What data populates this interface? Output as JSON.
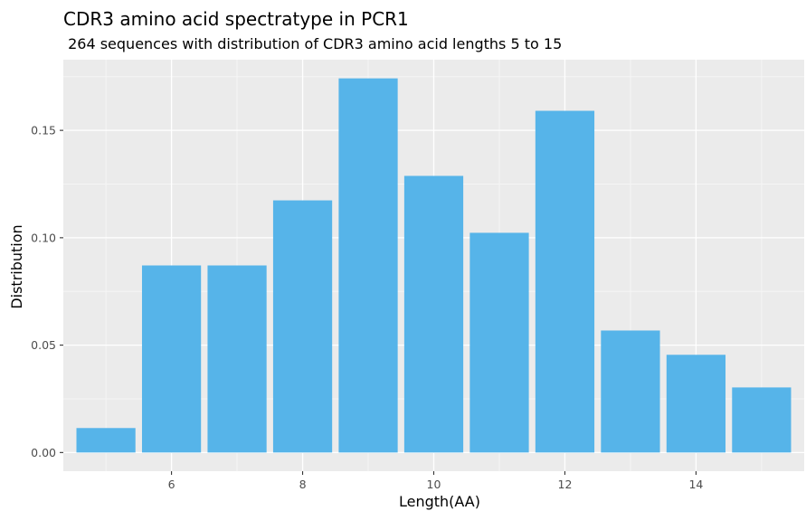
{
  "chart_data": {
    "type": "bar",
    "title": "CDR3 amino acid spectratype in PCR1",
    "subtitle": " 264 sequences with distribution of CDR3 amino acid lengths 5 to 15",
    "xlabel": "Length(AA)",
    "ylabel": "Distribution",
    "categories": [
      5,
      6,
      7,
      8,
      9,
      10,
      11,
      12,
      13,
      14,
      15
    ],
    "values": [
      0.0114,
      0.0871,
      0.0871,
      0.1174,
      0.1742,
      0.1288,
      0.1023,
      0.1591,
      0.0568,
      0.0455,
      0.0303
    ],
    "x_ticks": [
      "6",
      "8",
      "10",
      "12",
      "14"
    ],
    "x_tick_values": [
      6,
      8,
      10,
      12,
      14
    ],
    "y_ticks": [
      "0.00",
      "0.05",
      "0.10",
      "0.15"
    ],
    "y_tick_values": [
      0,
      0.05,
      0.1,
      0.15
    ],
    "xlim": [
      4.35,
      15.65
    ],
    "ylim": [
      -0.0087,
      0.1829
    ],
    "grid": true,
    "colors": {
      "bar": "#56b4e9",
      "panel": "#ebebeb",
      "grid_major": "#ffffff",
      "grid_minor": "#f5f5f5"
    }
  }
}
